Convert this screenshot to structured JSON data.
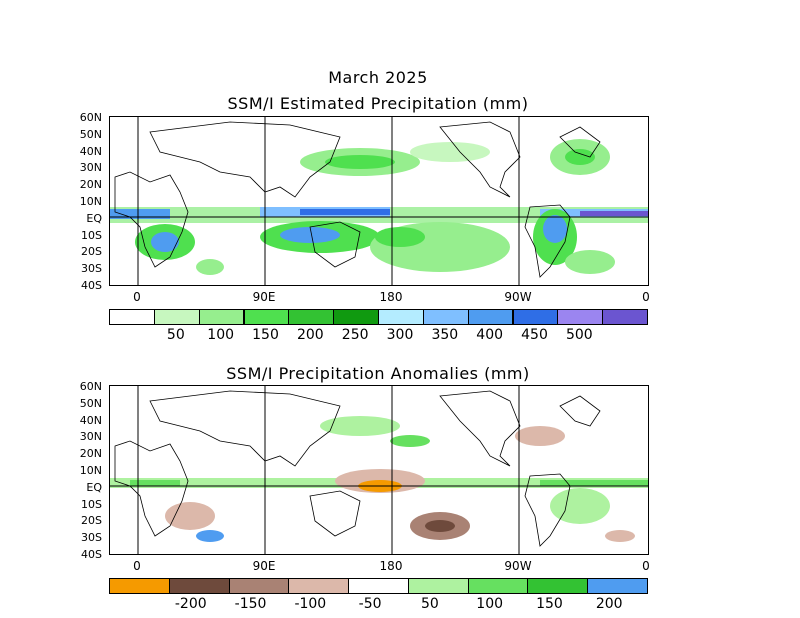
{
  "header": {
    "month": "March 2025",
    "title_top": "SSM/I Estimated Precipitation (mm)",
    "title_bottom": "SSM/I Precipitation Anomalies (mm)"
  },
  "lat_labels": [
    "60N",
    "50N",
    "40N",
    "30N",
    "20N",
    "10N",
    "EQ",
    "10S",
    "20S",
    "30S",
    "40S"
  ],
  "lon_labels": [
    "0",
    "90E",
    "180",
    "90W",
    "0"
  ],
  "colorbar_top": {
    "labels": [
      "50",
      "100",
      "150",
      "200",
      "250",
      "300",
      "350",
      "400",
      "450",
      "500"
    ],
    "colors": [
      "#ffffff",
      "#c7f7bf",
      "#96ee8e",
      "#4fe04f",
      "#33c233",
      "#109a10",
      "#b4ecff",
      "#7fbfff",
      "#4f9cf0",
      "#2f6ee6",
      "#9b85f0",
      "#6b55d0"
    ]
  },
  "colorbar_bottom": {
    "labels": [
      "-200",
      "-150",
      "-100",
      "-50",
      "50",
      "100",
      "150",
      "200"
    ],
    "colors": [
      "#f59a00",
      "#6e4a3c",
      "#a98274",
      "#dcb8aa",
      "#ffffff",
      "#aef2a0",
      "#66e060",
      "#33c233",
      "#4f9cf0"
    ]
  }
}
